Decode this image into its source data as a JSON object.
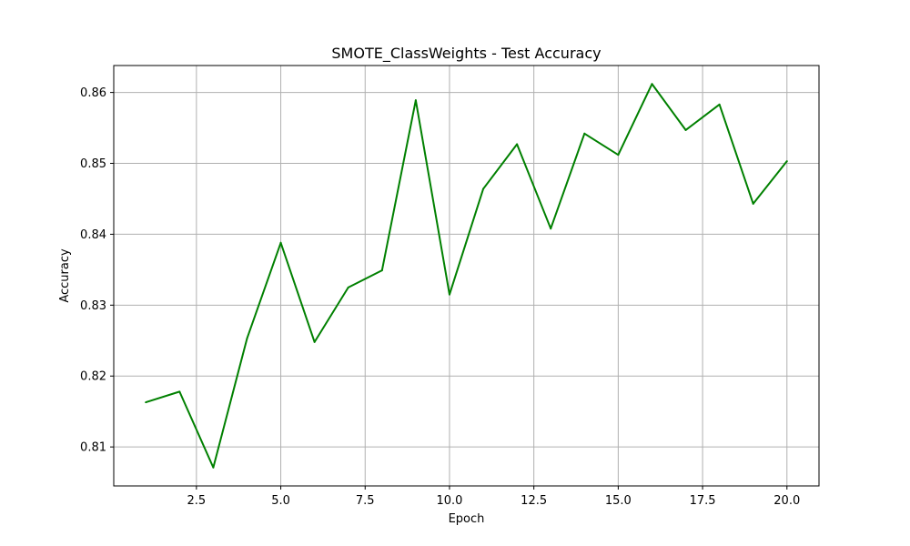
{
  "chart_data": {
    "type": "line",
    "title": "SMOTE_ClassWeights - Test Accuracy",
    "xlabel": "Epoch",
    "ylabel": "Accuracy",
    "xlim": [
      0.05,
      20.95
    ],
    "ylim": [
      0.8045,
      0.8638
    ],
    "x_ticks": [
      2.5,
      5.0,
      7.5,
      10.0,
      12.5,
      15.0,
      17.5,
      20.0
    ],
    "x_tick_labels": [
      "2.5",
      "5.0",
      "7.5",
      "10.0",
      "12.5",
      "15.0",
      "17.5",
      "20.0"
    ],
    "y_ticks": [
      0.81,
      0.82,
      0.83,
      0.84,
      0.85,
      0.86
    ],
    "y_tick_labels": [
      "0.81",
      "0.82",
      "0.83",
      "0.84",
      "0.85",
      "0.86"
    ],
    "grid": true,
    "series": [
      {
        "color": "#008000",
        "x": [
          1,
          2,
          3,
          4,
          5,
          6,
          7,
          8,
          9,
          10,
          11,
          12,
          13,
          14,
          15,
          16,
          17,
          18,
          19,
          20
        ],
        "y": [
          0.8163,
          0.8178,
          0.8071,
          0.8253,
          0.8388,
          0.8248,
          0.8325,
          0.8349,
          0.8589,
          0.8315,
          0.8464,
          0.8527,
          0.8408,
          0.8542,
          0.8512,
          0.8612,
          0.8547,
          0.8583,
          0.8443,
          0.8503
        ]
      }
    ]
  }
}
